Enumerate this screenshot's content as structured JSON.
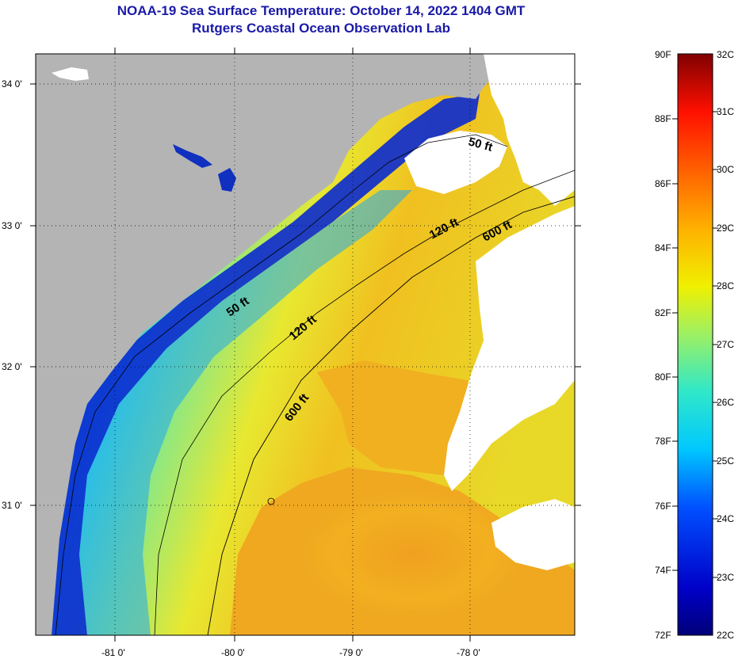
{
  "title": {
    "line1": "NOAA-19 Sea Surface Temperature:  October 14, 2022 1404 GMT",
    "line2": "Rutgers Coastal Ocean Observation Lab"
  },
  "map": {
    "lat_labels": [
      "34 0'",
      "33 0'",
      "32 0'",
      "31 0'"
    ],
    "lon_labels": [
      "-81 0'",
      "-80 0'",
      "-79 0'",
      "-78 0'"
    ],
    "contours": [
      {
        "label": "50 ft"
      },
      {
        "label": "50 ft"
      },
      {
        "label": "120 ft"
      },
      {
        "label": "120 ft"
      },
      {
        "label": "600 ft"
      },
      {
        "label": "600 ft"
      }
    ],
    "colors": {
      "land": "#b4b4b4",
      "cloud": "#ffffff",
      "cold": "#0a1eb4",
      "warm": "#f0a020"
    }
  },
  "colorbar": {
    "fahrenheit_labels": [
      "90F",
      "88F",
      "86F",
      "84F",
      "82F",
      "80F",
      "78F",
      "76F",
      "74F",
      "72F"
    ],
    "celsius_labels": [
      "32C",
      "31C",
      "30C",
      "29C",
      "28C",
      "27C",
      "26C",
      "25C",
      "24C",
      "23C",
      "22C"
    ],
    "range_f": [
      72,
      90
    ],
    "range_c": [
      22,
      32
    ]
  }
}
